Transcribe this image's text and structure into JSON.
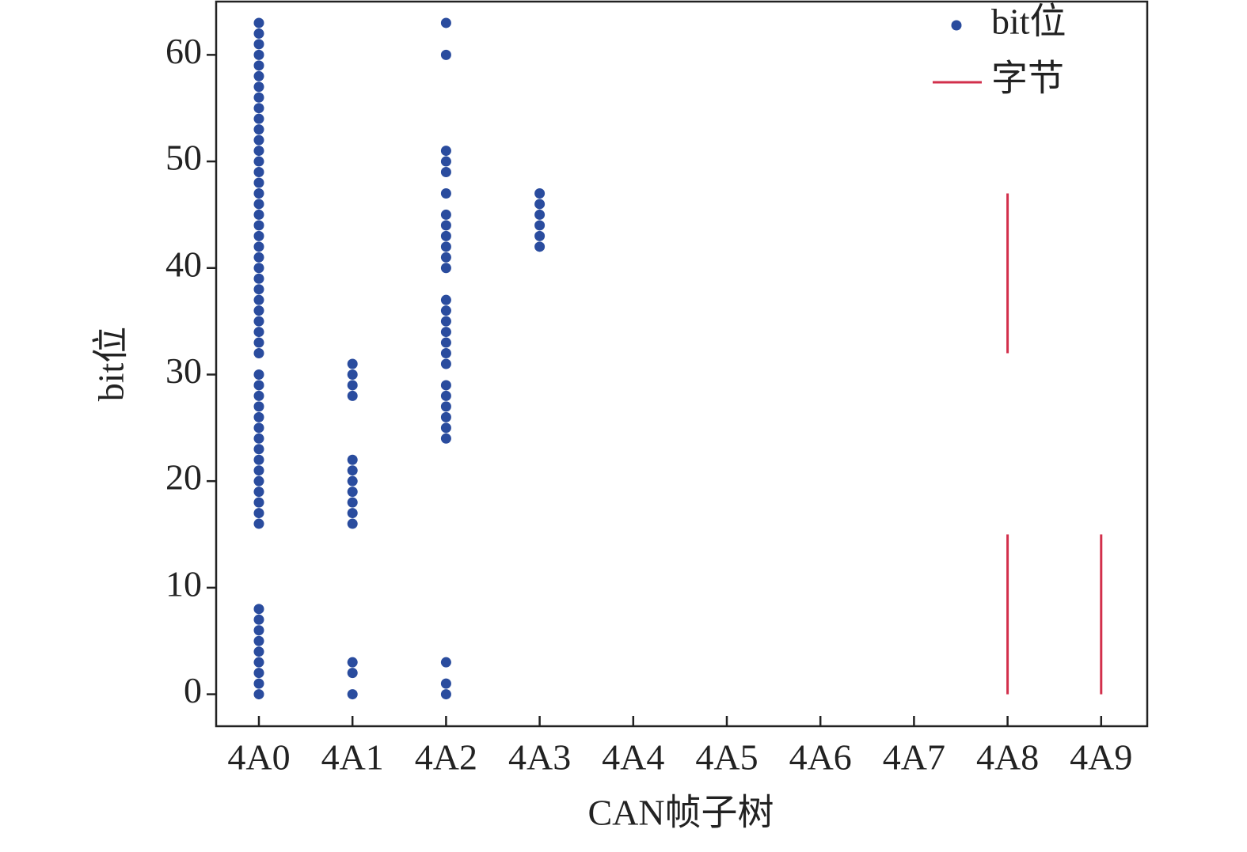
{
  "chart_data": {
    "type": "scatter",
    "xlabel": "CAN帧子树",
    "ylabel": "bit位",
    "categories": [
      "4A0",
      "4A1",
      "4A2",
      "4A3",
      "4A4",
      "4A5",
      "4A6",
      "4A7",
      "4A8",
      "4A9"
    ],
    "ylim": [
      -3,
      65
    ],
    "yticks": [
      0,
      10,
      20,
      30,
      40,
      50,
      60
    ],
    "legend": "upper right",
    "series": [
      {
        "name": "bit位",
        "color": "#2a4c9e",
        "marker": "dot",
        "x": [
          "4A0",
          "4A0",
          "4A0",
          "4A0",
          "4A0",
          "4A0",
          "4A0",
          "4A0",
          "4A0",
          "4A0",
          "4A0",
          "4A0",
          "4A0",
          "4A0",
          "4A0",
          "4A0",
          "4A0",
          "4A0",
          "4A0",
          "4A0",
          "4A0",
          "4A0",
          "4A0",
          "4A0",
          "4A0",
          "4A0",
          "4A0",
          "4A0",
          "4A0",
          "4A0",
          "4A0",
          "4A0",
          "4A0",
          "4A0",
          "4A0",
          "4A0",
          "4A0",
          "4A0",
          "4A0",
          "4A0",
          "4A0",
          "4A0",
          "4A0",
          "4A0",
          "4A0",
          "4A0",
          "4A0",
          "4A0",
          "4A0",
          "4A0",
          "4A0",
          "4A0",
          "4A0",
          "4A0",
          "4A0",
          "4A0",
          "4A1",
          "4A1",
          "4A1",
          "4A1",
          "4A1",
          "4A1",
          "4A1",
          "4A1",
          "4A1",
          "4A1",
          "4A1",
          "4A1",
          "4A1",
          "4A1",
          "4A2",
          "4A2",
          "4A2",
          "4A2",
          "4A2",
          "4A2",
          "4A2",
          "4A2",
          "4A2",
          "4A2",
          "4A2",
          "4A2",
          "4A2",
          "4A2",
          "4A2",
          "4A2",
          "4A2",
          "4A2",
          "4A2",
          "4A2",
          "4A2",
          "4A2",
          "4A2",
          "4A2",
          "4A2",
          "4A2",
          "4A2",
          "4A2",
          "4A3",
          "4A3",
          "4A3",
          "4A3",
          "4A3",
          "4A3"
        ],
        "values": [
          0,
          1,
          2,
          3,
          4,
          5,
          6,
          7,
          8,
          16,
          17,
          18,
          19,
          20,
          21,
          22,
          23,
          24,
          25,
          26,
          27,
          28,
          29,
          30,
          32,
          33,
          34,
          35,
          36,
          37,
          38,
          39,
          40,
          41,
          42,
          43,
          44,
          45,
          46,
          47,
          48,
          49,
          50,
          51,
          52,
          53,
          54,
          55,
          56,
          57,
          58,
          59,
          60,
          61,
          62,
          63,
          0,
          2,
          3,
          16,
          17,
          18,
          19,
          20,
          21,
          22,
          28,
          29,
          30,
          31,
          0,
          1,
          3,
          24,
          25,
          26,
          27,
          28,
          29,
          31,
          32,
          33,
          34,
          35,
          36,
          37,
          40,
          41,
          42,
          43,
          44,
          45,
          47,
          49,
          50,
          51,
          60,
          63,
          42,
          43,
          44,
          45,
          46,
          47
        ]
      },
      {
        "name": "字节",
        "color": "#d22f4b",
        "marker": "line",
        "x": [
          "4A8",
          "4A8",
          "4A9"
        ],
        "low": [
          0,
          32,
          0
        ],
        "high": [
          15,
          47,
          15
        ]
      }
    ]
  }
}
